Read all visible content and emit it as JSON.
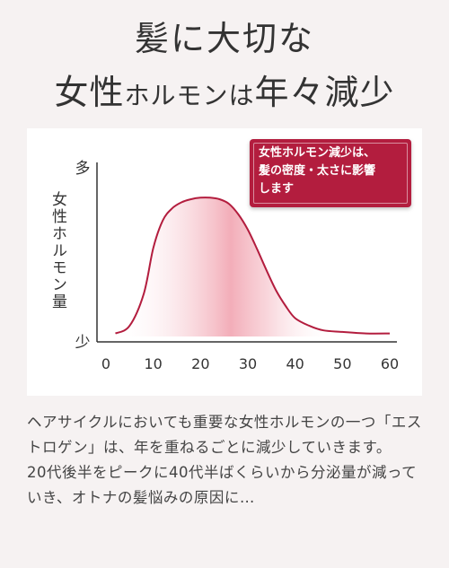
{
  "heading": {
    "line1": "髪に大切な",
    "line2_a": "女性",
    "line2_b": "ホルモン",
    "line2_c": "は",
    "line2_d": "年々減少"
  },
  "chart_data": {
    "type": "line",
    "title": "",
    "xlabel": "",
    "ylabel": "女性ホルモン量",
    "x_ticks": [
      "0",
      "10",
      "20",
      "30",
      "40",
      "50",
      "60"
    ],
    "y_ticks": [
      "多",
      "少"
    ],
    "xlim": [
      0,
      60
    ],
    "ylim": [
      0,
      1
    ],
    "grid": false,
    "series": [
      {
        "x": [
          2,
          5,
          8,
          10,
          12,
          14,
          16,
          18,
          20,
          22,
          24,
          26,
          28,
          30,
          32,
          34,
          36,
          38,
          40,
          43,
          46,
          50,
          55,
          60
        ],
        "y": [
          0.02,
          0.07,
          0.28,
          0.58,
          0.76,
          0.84,
          0.88,
          0.9,
          0.91,
          0.91,
          0.9,
          0.87,
          0.8,
          0.7,
          0.57,
          0.43,
          0.3,
          0.2,
          0.12,
          0.07,
          0.04,
          0.03,
          0.02,
          0.02
        ]
      }
    ],
    "annotation": "女性ホルモン減少は、髪の密度・太さに影響します",
    "colors": {
      "line": "#b31d3e",
      "fill": "#f4b6c0",
      "callout": "#b31d3e"
    }
  },
  "callout": {
    "line1": "女性ホルモン減少は、",
    "line2": "髪の密度・太さに影響",
    "line3": "します"
  },
  "body": {
    "para1": "ヘアサイクルにおいても重要な女性ホルモンの一つ「エストロゲン」は、年を重ねるごとに減少していきます。",
    "para2": "20代後半をピークに40代半ばくらいから分泌量が減っていき、オトナの髪悩みの原因に…"
  }
}
